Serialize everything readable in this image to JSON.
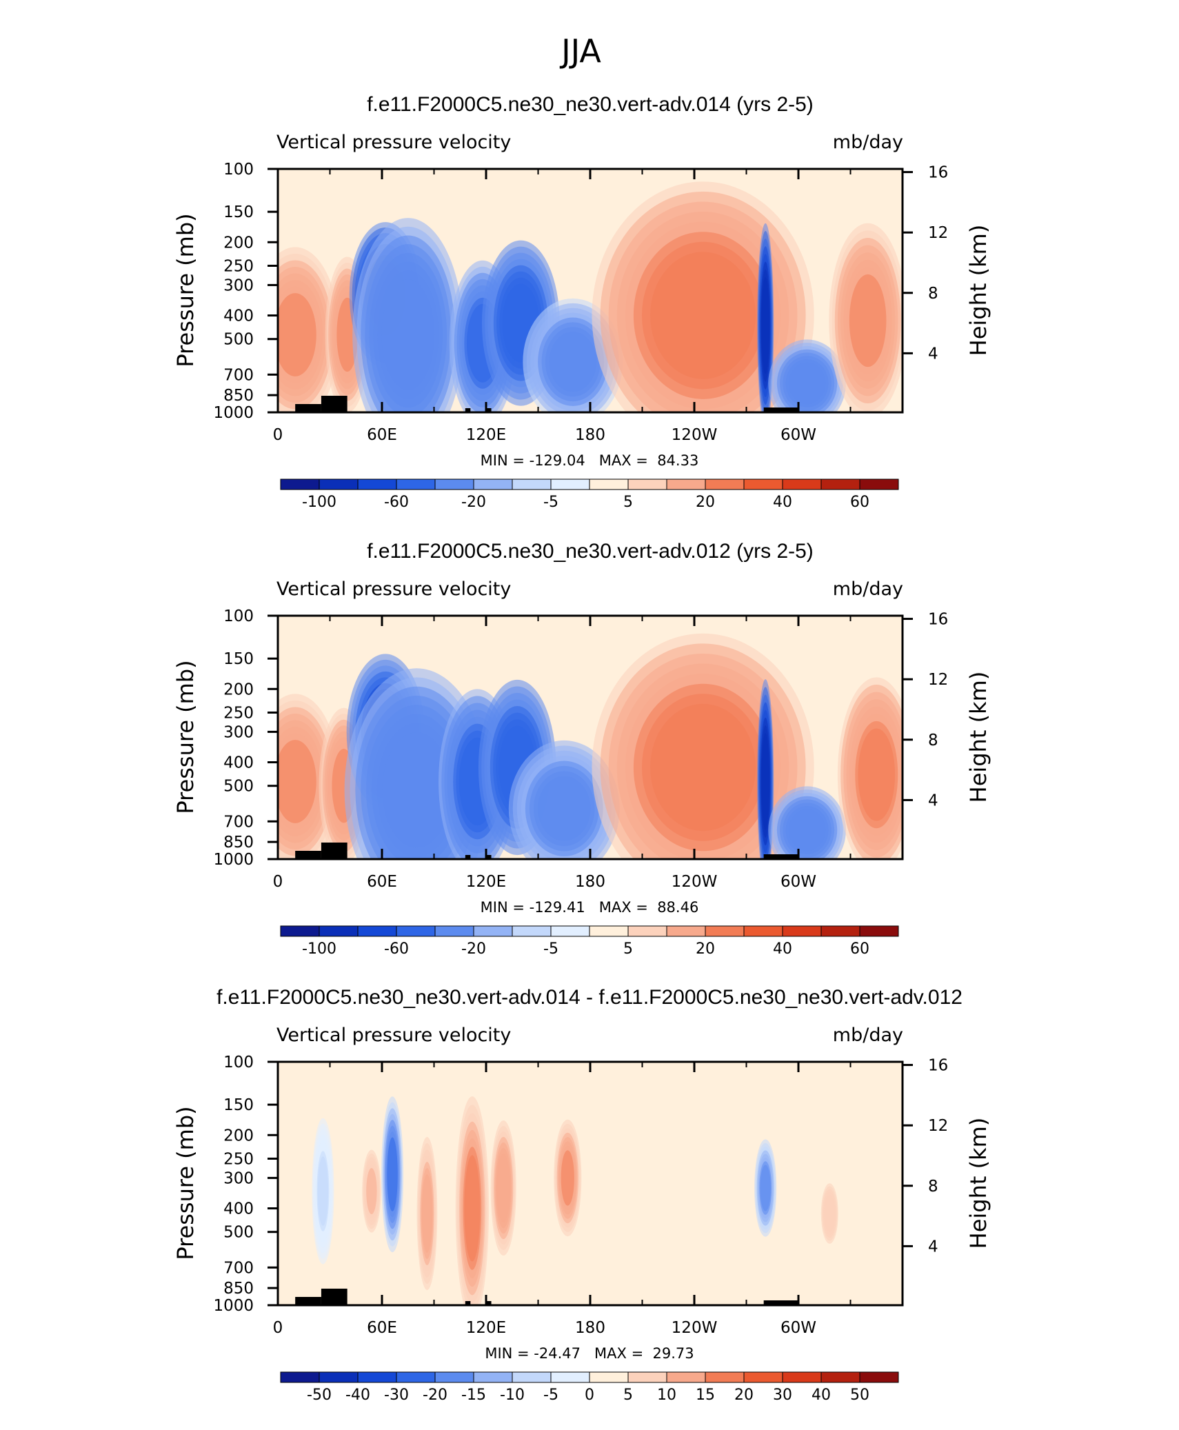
{
  "page_title": "JJA",
  "chart_data": [
    {
      "type": "heatmap",
      "title": "f.e11.F2000C5.ne30_ne30.vert-adv.014 (yrs 2-5)",
      "left_subtitle": "Vertical pressure velocity",
      "right_subtitle": "mb/day",
      "ylabel": "Pressure (mb)",
      "y2label": "Height (km)",
      "x_ticks": [
        "0",
        "60E",
        "120E",
        "180",
        "120W",
        "60W"
      ],
      "x_range_deg": [
        0,
        360
      ],
      "y_ticks": [
        "100",
        "150",
        "200",
        "250",
        "300",
        "400",
        "500",
        "700",
        "850",
        "1000"
      ],
      "y_range_mb": [
        1000,
        100
      ],
      "y2_ticks": [
        "16",
        "12",
        "8",
        "4"
      ],
      "min_max_text": "MIN = -129.04   MAX =  84.33",
      "colorbar_labels": [
        "-100",
        "-60",
        "-20",
        "-5",
        "5",
        "20",
        "40",
        "60"
      ],
      "colorbar_colors": [
        "#0d1a8f",
        "#0a2fb8",
        "#1448d6",
        "#2e66e6",
        "#5c8bef",
        "#93b3f5",
        "#c3d8fb",
        "#e2efff",
        "#fff0dc",
        "#fcd2bc",
        "#f7a98c",
        "#f27c55",
        "#eb5a30",
        "#d93a1a",
        "#b4210f",
        "#8a0c0c"
      ],
      "features": [
        {
          "name": "warm-west",
          "lon": 10,
          "p": 480,
          "w": 16,
          "h": 0.36,
          "v": 20
        },
        {
          "name": "warm-arabian",
          "lon": 40,
          "p": 480,
          "w": 8,
          "h": 0.32,
          "v": 22
        },
        {
          "name": "monsoon-upper",
          "lon": 62,
          "p": 330,
          "w": 13,
          "h": 0.3,
          "v": -95
        },
        {
          "name": "monsoon-deep",
          "lon": 75,
          "p": 480,
          "w": 20,
          "h": 0.48,
          "v": -38
        },
        {
          "name": "warm-pool-a",
          "lon": 118,
          "p": 520,
          "w": 12,
          "h": 0.34,
          "v": -45
        },
        {
          "name": "warm-pool-b",
          "lon": 140,
          "p": 430,
          "w": 14,
          "h": 0.34,
          "v": -60
        },
        {
          "name": "central-pacific",
          "lon": 170,
          "p": 620,
          "w": 18,
          "h": 0.26,
          "v": -28
        },
        {
          "name": "east-pacific-subsidence",
          "lon": 245,
          "p": 400,
          "w": 40,
          "h": 0.55,
          "v": 25
        },
        {
          "name": "itcz-america",
          "lon": 281,
          "p": 440,
          "w": 3,
          "h": 0.42,
          "v": -100
        },
        {
          "name": "atlantic-itcz",
          "lon": 305,
          "p": 760,
          "w": 14,
          "h": 0.18,
          "v": -35
        },
        {
          "name": "atlantic-subsidence",
          "lon": 340,
          "p": 420,
          "w": 14,
          "h": 0.4,
          "v": 22
        }
      ]
    },
    {
      "type": "heatmap",
      "title": "f.e11.F2000C5.ne30_ne30.vert-adv.012 (yrs 2-5)",
      "left_subtitle": "Vertical pressure velocity",
      "right_subtitle": "mb/day",
      "ylabel": "Pressure (mb)",
      "y2label": "Height (km)",
      "x_ticks": [
        "0",
        "60E",
        "120E",
        "180",
        "120W",
        "60W"
      ],
      "x_range_deg": [
        0,
        360
      ],
      "y_ticks": [
        "100",
        "150",
        "200",
        "250",
        "300",
        "400",
        "500",
        "700",
        "850",
        "1000"
      ],
      "y_range_mb": [
        1000,
        100
      ],
      "y2_ticks": [
        "16",
        "12",
        "8",
        "4"
      ],
      "min_max_text": "MIN = -129.41   MAX =  88.46",
      "colorbar_labels": [
        "-100",
        "-60",
        "-20",
        "-5",
        "5",
        "20",
        "40",
        "60"
      ],
      "colorbar_colors": [
        "#0d1a8f",
        "#0a2fb8",
        "#1448d6",
        "#2e66e6",
        "#5c8bef",
        "#93b3f5",
        "#c3d8fb",
        "#e2efff",
        "#fff0dc",
        "#fcd2bc",
        "#f7a98c",
        "#f27c55",
        "#eb5a30",
        "#d93a1a",
        "#b4210f",
        "#8a0c0c"
      ],
      "features": [
        {
          "name": "warm-west",
          "lon": 10,
          "p": 480,
          "w": 16,
          "h": 0.36,
          "v": 22
        },
        {
          "name": "warm-arabian",
          "lon": 38,
          "p": 500,
          "w": 9,
          "h": 0.32,
          "v": 22
        },
        {
          "name": "monsoon-upper",
          "lon": 62,
          "p": 300,
          "w": 14,
          "h": 0.32,
          "v": -75
        },
        {
          "name": "monsoon-deep",
          "lon": 80,
          "p": 520,
          "w": 26,
          "h": 0.5,
          "v": -40
        },
        {
          "name": "warm-pool-a",
          "lon": 115,
          "p": 480,
          "w": 14,
          "h": 0.38,
          "v": -55
        },
        {
          "name": "warm-pool-b",
          "lon": 138,
          "p": 420,
          "w": 14,
          "h": 0.36,
          "v": -60
        },
        {
          "name": "central-pacific",
          "lon": 165,
          "p": 620,
          "w": 20,
          "h": 0.28,
          "v": -30
        },
        {
          "name": "east-pacific-subsidence",
          "lon": 245,
          "p": 420,
          "w": 40,
          "h": 0.55,
          "v": 26
        },
        {
          "name": "itcz-america",
          "lon": 281,
          "p": 480,
          "w": 3,
          "h": 0.42,
          "v": -100
        },
        {
          "name": "atlantic-itcz",
          "lon": 305,
          "p": 760,
          "w": 14,
          "h": 0.18,
          "v": -35
        },
        {
          "name": "atlantic-subsidence",
          "lon": 345,
          "p": 450,
          "w": 14,
          "h": 0.4,
          "v": 24
        }
      ]
    },
    {
      "type": "heatmap",
      "title": "f.e11.F2000C5.ne30_ne30.vert-adv.014 - f.e11.F2000C5.ne30_ne30.vert-adv.012",
      "left_subtitle": "Vertical pressure velocity",
      "right_subtitle": "mb/day",
      "ylabel": "Pressure (mb)",
      "y2label": "Height (km)",
      "x_ticks": [
        "0",
        "60E",
        "120E",
        "180",
        "120W",
        "60W"
      ],
      "x_range_deg": [
        0,
        360
      ],
      "y_ticks": [
        "100",
        "150",
        "200",
        "250",
        "300",
        "400",
        "500",
        "700",
        "850",
        "1000"
      ],
      "y_range_mb": [
        1000,
        100
      ],
      "y2_ticks": [
        "16",
        "12",
        "8",
        "4"
      ],
      "min_max_text": "MIN = -24.47   MAX =  29.73",
      "colorbar_labels": [
        "-50",
        "-40",
        "-30",
        "-20",
        "-15",
        "-10",
        "-5",
        "0",
        "5",
        "10",
        "15",
        "20",
        "30",
        "40",
        "50"
      ],
      "colorbar_colors": [
        "#0d1a8f",
        "#0a2fb8",
        "#1448d6",
        "#2e66e6",
        "#5c8bef",
        "#93b3f5",
        "#c3d8fb",
        "#e2efff",
        "#fff0dc",
        "#fcd2bc",
        "#f7a98c",
        "#f27c55",
        "#eb5a30",
        "#d93a1a",
        "#b4210f",
        "#8a0c0c"
      ],
      "features": [
        {
          "name": "diff-neg-a",
          "lon": 26,
          "p": 340,
          "w": 4,
          "h": 0.3,
          "v": -6
        },
        {
          "name": "diff-pos-a",
          "lon": 54,
          "p": 340,
          "w": 4,
          "h": 0.2,
          "v": 10
        },
        {
          "name": "diff-neg-monsoon",
          "lon": 66,
          "p": 290,
          "w": 4,
          "h": 0.32,
          "v": -22
        },
        {
          "name": "diff-pos-b",
          "lon": 86,
          "p": 420,
          "w": 4,
          "h": 0.34,
          "v": 13
        },
        {
          "name": "diff-pos-c",
          "lon": 112,
          "p": 400,
          "w": 6,
          "h": 0.46,
          "v": 18
        },
        {
          "name": "diff-pos-d",
          "lon": 130,
          "p": 330,
          "w": 5,
          "h": 0.3,
          "v": 14
        },
        {
          "name": "diff-pos-e",
          "lon": 167,
          "p": 300,
          "w": 5,
          "h": 0.24,
          "v": 16
        },
        {
          "name": "diff-neg-b",
          "lon": 281,
          "p": 330,
          "w": 4,
          "h": 0.2,
          "v": -18
        },
        {
          "name": "diff-pos-f",
          "lon": 318,
          "p": 420,
          "w": 4,
          "h": 0.16,
          "v": 9
        }
      ]
    }
  ]
}
